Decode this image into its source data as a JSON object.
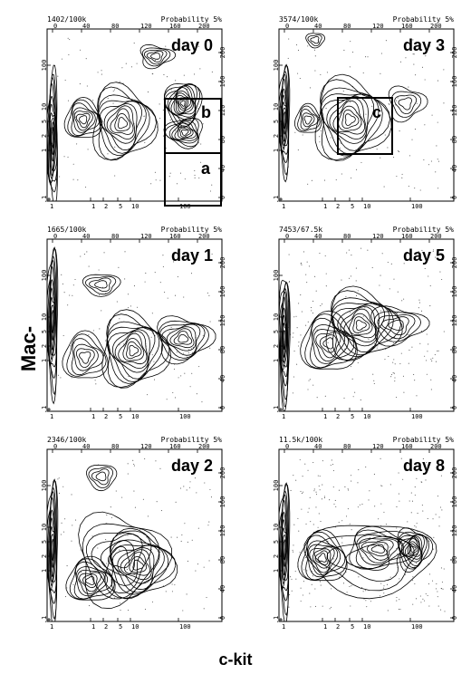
{
  "figure": {
    "y_axis_label": "Mac-1",
    "x_axis_label": "c-kit"
  },
  "chart_data": [
    {
      "type": "contour",
      "panel": "day 0",
      "header_left": "1402/100k",
      "header_right": "Probability 5%",
      "top_ticks": [
        "0",
        "40",
        "80",
        "120",
        "160",
        "200"
      ],
      "right_ticks": [
        "0",
        "40",
        "80",
        "120",
        "160",
        "200"
      ],
      "bottom_ticks": [
        "1",
        "1",
        "2",
        "5",
        "10",
        "100"
      ],
      "left_ticks": [
        ".1",
        "1",
        "2",
        "5",
        "10",
        "100"
      ],
      "gates": [
        "b",
        "a"
      ]
    },
    {
      "type": "contour",
      "panel": "day 3",
      "header_left": "3574/100k",
      "header_right": "Probability 5%",
      "top_ticks": [
        "0",
        "40",
        "80",
        "120",
        "160",
        "200"
      ],
      "right_ticks": [
        "0",
        "40",
        "80",
        "120",
        "160",
        "200"
      ],
      "bottom_ticks": [
        "1",
        "1",
        "2",
        "5",
        "10",
        "100"
      ],
      "left_ticks": [
        ".1",
        "1",
        "2",
        "5",
        "10",
        "100"
      ],
      "gates": [
        "c"
      ]
    },
    {
      "type": "contour",
      "panel": "day 1",
      "header_left": "1665/100k",
      "header_right": "Probability 5%",
      "top_ticks": [
        "0",
        "40",
        "80",
        "120",
        "160",
        "200"
      ],
      "right_ticks": [
        "0",
        "40",
        "80",
        "120",
        "160",
        "200"
      ],
      "bottom_ticks": [
        "1",
        "1",
        "2",
        "5",
        "10",
        "100"
      ],
      "left_ticks": [
        ".1",
        "1",
        "2",
        "5",
        "10",
        "100"
      ],
      "gates": []
    },
    {
      "type": "contour",
      "panel": "day 5",
      "header_left": "7453/67.5k",
      "header_right": "Probability 5%",
      "top_ticks": [
        "0",
        "40",
        "80",
        "120",
        "160",
        "200"
      ],
      "right_ticks": [
        "0",
        "40",
        "80",
        "120",
        "160",
        "200"
      ],
      "bottom_ticks": [
        "1",
        "1",
        "2",
        "5",
        "10",
        "100"
      ],
      "left_ticks": [
        ".1",
        "1",
        "2",
        "5",
        "10",
        "100"
      ],
      "gates": []
    },
    {
      "type": "contour",
      "panel": "day 2",
      "header_left": "2346/100k",
      "header_right": "Probability 5%",
      "top_ticks": [
        "0",
        "40",
        "80",
        "120",
        "160",
        "200"
      ],
      "right_ticks": [
        "0",
        "40",
        "80",
        "120",
        "160",
        "200"
      ],
      "bottom_ticks": [
        "1",
        "1",
        "2",
        "5",
        "10",
        "100"
      ],
      "left_ticks": [
        ".1",
        "1",
        "2",
        "5",
        "10",
        "100"
      ],
      "gates": []
    },
    {
      "type": "contour",
      "panel": "day 8",
      "header_left": "11.5k/100k",
      "header_right": "Probability 5%",
      "top_ticks": [
        "0",
        "40",
        "80",
        "120",
        "160",
        "200"
      ],
      "right_ticks": [
        "0",
        "40",
        "80",
        "120",
        "160",
        "200"
      ],
      "bottom_ticks": [
        "1",
        "1",
        "2",
        "5",
        "10",
        "100"
      ],
      "left_ticks": [
        ".1",
        "1",
        "2",
        "5",
        "10",
        "100"
      ],
      "gates": []
    }
  ]
}
